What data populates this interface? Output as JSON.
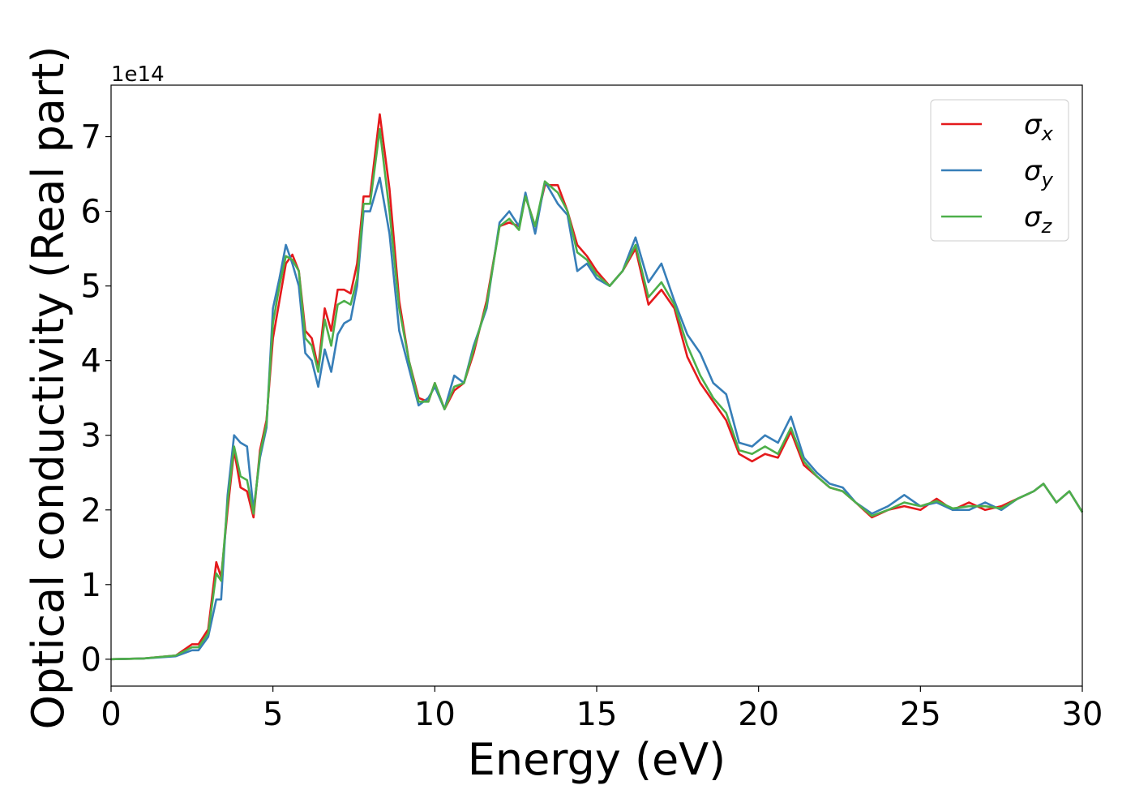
{
  "chart_data": {
    "type": "line",
    "xlabel": "Energy (eV)",
    "ylabel": "Optical conductivity (Real part)",
    "y_offset_label": "1e14",
    "xlim": [
      0,
      30
    ],
    "ylim": [
      -0.36,
      7.69
    ],
    "xticks": [
      0,
      5,
      10,
      15,
      20,
      25,
      30
    ],
    "yticks": [
      0,
      1,
      2,
      3,
      4,
      5,
      6,
      7
    ],
    "legend": "upper right",
    "x": [
      0,
      1,
      2,
      2.5,
      2.7,
      3,
      3.25,
      3.4,
      3.6,
      3.8,
      4.0,
      4.2,
      4.4,
      4.6,
      4.8,
      5.0,
      5.2,
      5.4,
      5.6,
      5.8,
      6.0,
      6.2,
      6.4,
      6.6,
      6.8,
      7.0,
      7.2,
      7.4,
      7.6,
      7.8,
      8.0,
      8.3,
      8.6,
      8.9,
      9.2,
      9.5,
      9.8,
      10,
      10.3,
      10.6,
      10.9,
      11.2,
      11.6,
      12,
      12.3,
      12.6,
      12.8,
      13.1,
      13.4,
      13.8,
      14.1,
      14.4,
      14.7,
      15,
      15.4,
      15.8,
      16.2,
      16.6,
      17,
      17.4,
      17.8,
      18.2,
      18.6,
      19,
      19.4,
      19.8,
      20.2,
      20.6,
      21,
      21.4,
      21.8,
      22.2,
      22.6,
      23,
      23.5,
      24,
      24.5,
      25,
      25.5,
      26,
      26.5,
      27,
      27.5,
      28,
      28.5,
      28.8,
      29.2,
      29.6,
      30
    ],
    "series": [
      {
        "name": "σx",
        "color": "#e41a1c",
        "values": [
          0,
          0.01,
          0.05,
          0.2,
          0.2,
          0.4,
          1.3,
          1.1,
          2.0,
          2.8,
          2.3,
          2.25,
          1.9,
          2.8,
          3.2,
          4.3,
          4.8,
          5.3,
          5.42,
          5.2,
          4.4,
          4.3,
          3.9,
          4.7,
          4.4,
          4.95,
          4.95,
          4.9,
          5.3,
          6.2,
          6.2,
          7.3,
          6.3,
          4.8,
          4.0,
          3.5,
          3.45,
          3.7,
          3.35,
          3.6,
          3.7,
          4.1,
          4.8,
          5.8,
          5.85,
          5.8,
          6.2,
          5.8,
          6.35,
          6.35,
          6.0,
          5.55,
          5.4,
          5.2,
          5.0,
          5.2,
          5.5,
          4.75,
          4.95,
          4.7,
          4.05,
          3.7,
          3.45,
          3.2,
          2.75,
          2.65,
          2.75,
          2.7,
          3.05,
          2.6,
          2.45,
          2.3,
          2.25,
          2.1,
          1.9,
          2.0,
          2.05,
          2.0,
          2.15,
          2.0,
          2.1,
          2.0,
          2.05,
          2.15,
          2.25,
          2.35,
          2.1,
          2.25,
          1.97
        ]
      },
      {
        "name": "σy",
        "color": "#377eb8",
        "values": [
          0,
          0.01,
          0.04,
          0.12,
          0.12,
          0.3,
          0.8,
          0.8,
          2.2,
          3.0,
          2.9,
          2.85,
          2.0,
          2.7,
          3.1,
          4.7,
          5.1,
          5.55,
          5.3,
          5.0,
          4.1,
          4.0,
          3.65,
          4.15,
          3.85,
          4.35,
          4.5,
          4.55,
          5.0,
          6.0,
          6.0,
          6.45,
          5.7,
          4.4,
          3.9,
          3.4,
          3.5,
          3.65,
          3.35,
          3.8,
          3.7,
          4.2,
          4.7,
          5.85,
          6.0,
          5.8,
          6.25,
          5.7,
          6.4,
          6.1,
          5.95,
          5.2,
          5.3,
          5.1,
          5.0,
          5.2,
          5.65,
          5.05,
          5.3,
          4.8,
          4.35,
          4.1,
          3.7,
          3.55,
          2.9,
          2.85,
          3.0,
          2.9,
          3.25,
          2.7,
          2.5,
          2.35,
          2.3,
          2.1,
          1.95,
          2.05,
          2.2,
          2.05,
          2.1,
          2.0,
          2.0,
          2.1,
          2.0,
          2.15,
          2.25,
          2.35,
          2.1,
          2.25,
          1.97
        ]
      },
      {
        "name": "σz",
        "color": "#4daf4a",
        "values": [
          0,
          0.01,
          0.05,
          0.16,
          0.16,
          0.35,
          1.15,
          1.05,
          2.1,
          2.85,
          2.45,
          2.4,
          1.95,
          2.75,
          3.15,
          4.5,
          5.0,
          5.4,
          5.35,
          5.2,
          4.3,
          4.2,
          3.85,
          4.55,
          4.2,
          4.75,
          4.8,
          4.75,
          5.1,
          6.1,
          6.1,
          7.1,
          6.0,
          4.7,
          4.0,
          3.45,
          3.45,
          3.7,
          3.35,
          3.65,
          3.7,
          4.15,
          4.75,
          5.8,
          5.9,
          5.75,
          6.2,
          5.8,
          6.4,
          6.25,
          6.0,
          5.45,
          5.35,
          5.15,
          5.0,
          5.2,
          5.55,
          4.85,
          5.05,
          4.75,
          4.2,
          3.8,
          3.5,
          3.3,
          2.8,
          2.75,
          2.85,
          2.75,
          3.1,
          2.65,
          2.45,
          2.3,
          2.25,
          2.1,
          1.92,
          2.0,
          2.1,
          2.05,
          2.12,
          2.02,
          2.05,
          2.05,
          2.02,
          2.15,
          2.25,
          2.35,
          2.1,
          2.25,
          1.97
        ]
      }
    ]
  }
}
